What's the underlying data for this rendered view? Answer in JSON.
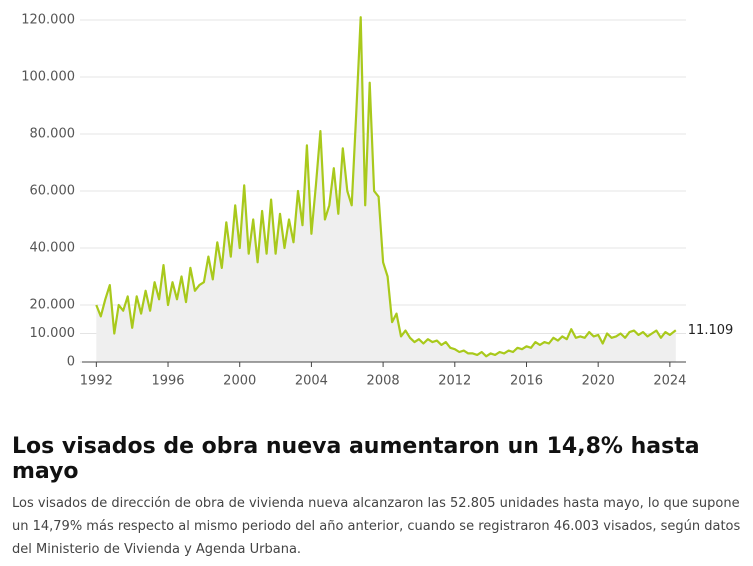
{
  "chart_data": {
    "type": "line",
    "x": [
      1992,
      1992.25,
      1992.5,
      1992.75,
      1993,
      1993.25,
      1993.5,
      1993.75,
      1994,
      1994.25,
      1994.5,
      1994.75,
      1995,
      1995.25,
      1995.5,
      1995.75,
      1996,
      1996.25,
      1996.5,
      1996.75,
      1997,
      1997.25,
      1997.5,
      1997.75,
      1998,
      1998.25,
      1998.5,
      1998.75,
      1999,
      1999.25,
      1999.5,
      1999.75,
      2000,
      2000.25,
      2000.5,
      2000.75,
      2001,
      2001.25,
      2001.5,
      2001.75,
      2002,
      2002.25,
      2002.5,
      2002.75,
      2003,
      2003.25,
      2003.5,
      2003.75,
      2004,
      2004.25,
      2004.5,
      2004.75,
      2005,
      2005.25,
      2005.5,
      2005.75,
      2006,
      2006.25,
      2006.5,
      2006.75,
      2007,
      2007.25,
      2007.5,
      2007.75,
      2008,
      2008.25,
      2008.5,
      2008.75,
      2009,
      2009.25,
      2009.5,
      2009.75,
      2010,
      2010.25,
      2010.5,
      2010.75,
      2011,
      2011.25,
      2011.5,
      2011.75,
      2012,
      2012.25,
      2012.5,
      2012.75,
      2013,
      2013.25,
      2013.5,
      2013.75,
      2014,
      2014.25,
      2014.5,
      2014.75,
      2015,
      2015.25,
      2015.5,
      2015.75,
      2016,
      2016.25,
      2016.5,
      2016.75,
      2017,
      2017.25,
      2017.5,
      2017.75,
      2018,
      2018.25,
      2018.5,
      2018.75,
      2019,
      2019.25,
      2019.5,
      2019.75,
      2020,
      2020.25,
      2020.5,
      2020.75,
      2021,
      2021.25,
      2021.5,
      2021.75,
      2022,
      2022.25,
      2022.5,
      2022.75,
      2023,
      2023.25,
      2023.5,
      2023.75,
      2024,
      2024.33
    ],
    "series": [
      {
        "color": "#a9c91c",
        "values": [
          20000,
          16000,
          22000,
          27000,
          10000,
          20000,
          18000,
          23000,
          12000,
          23000,
          17000,
          25000,
          18000,
          28000,
          22000,
          34000,
          20000,
          28000,
          22000,
          30000,
          21000,
          33000,
          25000,
          27000,
          28000,
          37000,
          29000,
          42000,
          33000,
          49000,
          37000,
          55000,
          40000,
          62000,
          38000,
          50000,
          35000,
          53000,
          38000,
          57000,
          38000,
          52000,
          40000,
          50000,
          42000,
          60000,
          48000,
          76000,
          45000,
          62000,
          81000,
          50000,
          55000,
          68000,
          52000,
          75000,
          60000,
          55000,
          87000,
          121000,
          55000,
          98000,
          60000,
          58000,
          35000,
          30000,
          14000,
          17000,
          9000,
          11000,
          8500,
          7000,
          8000,
          6500,
          8000,
          7000,
          7500,
          6000,
          7000,
          5000,
          4500,
          3500,
          4000,
          3000,
          3000,
          2500,
          3500,
          2000,
          3000,
          2500,
          3500,
          3000,
          4000,
          3500,
          5000,
          4500,
          5500,
          5000,
          7000,
          6000,
          7000,
          6500,
          8500,
          7500,
          9000,
          8000,
          11500,
          8500,
          9000,
          8500,
          10500,
          9000,
          9500,
          6500,
          10000,
          8500,
          9000,
          10000,
          8500,
          10500,
          11000,
          9500,
          10500,
          9000,
          10000,
          11000,
          8500,
          10500,
          9500,
          11109
        ]
      }
    ],
    "annotations": [
      {
        "x": 2024.33,
        "value": 11109,
        "label": "11.109"
      }
    ],
    "xlim": [
      1991.2,
      2024.9
    ],
    "xticks": [
      1992,
      1996,
      2000,
      2004,
      2008,
      2012,
      2016,
      2020,
      2024
    ],
    "ylim": [
      0,
      120000
    ],
    "yticks": [
      {
        "value": 0,
        "label": "0"
      },
      {
        "value": 10000,
        "label": "10.000"
      },
      {
        "value": 20000,
        "label": "20.000"
      },
      {
        "value": 40000,
        "label": "40.000"
      },
      {
        "value": 60000,
        "label": "60.000"
      },
      {
        "value": 80000,
        "label": "80.000"
      },
      {
        "value": 100000,
        "label": "100.000"
      },
      {
        "value": 120000,
        "label": "120.000"
      }
    ],
    "grid": true,
    "area_color": "#efefef"
  },
  "article": {
    "headline": "Los visados de obra nueva aumentaron un 14,8% hasta mayo",
    "body": "Los visados de dirección de obra de vivienda nueva alcanzaron las 52.805 unidades hasta mayo, lo que supone un 14,79% más respecto al mismo periodo del año anterior, cuando se registraron 46.003 visados, según datos del Ministerio de Vivienda y Agenda Urbana."
  }
}
